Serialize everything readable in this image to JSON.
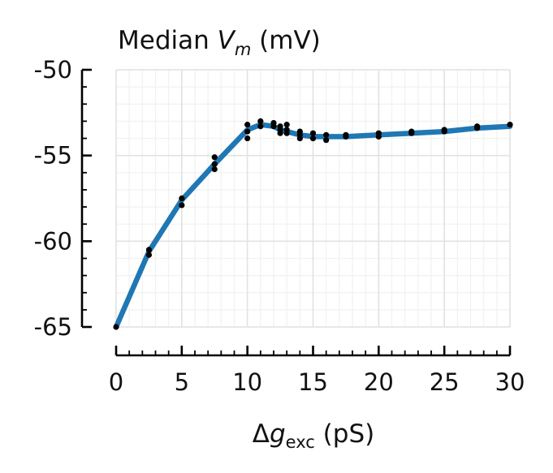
{
  "chart_data": {
    "type": "line",
    "title": {
      "prefix": "Median ",
      "var": "V",
      "sub": "m",
      "suffix": " (mV)"
    },
    "xlabel": {
      "prefix": "Δ",
      "var": "g",
      "sub": "exc",
      "suffix": " (pS)"
    },
    "ylabel": "",
    "xlim": [
      0,
      30
    ],
    "ylim": [
      -65,
      -50
    ],
    "x_ticks": [
      0,
      5,
      10,
      15,
      20,
      25,
      30
    ],
    "x_tick_labels": [
      "0",
      "5",
      "10",
      "15",
      "20",
      "25",
      "30"
    ],
    "y_ticks": [
      -65,
      -60,
      -55,
      -50
    ],
    "y_tick_labels": [
      "-65",
      "-60",
      "-55",
      "-50"
    ],
    "x_minor_step": 1,
    "y_minor_step": 1,
    "grid": true,
    "line_color": "#1f77b4",
    "marker_color": "#000000",
    "series": [
      {
        "x": [
          0,
          2.5,
          5,
          7.5,
          10,
          11,
          12,
          12.5,
          13,
          14,
          15,
          16,
          17.5,
          20,
          22.5,
          25,
          27.5,
          30
        ],
        "y": [
          -65.0,
          -60.6,
          -57.6,
          -55.5,
          -53.5,
          -53.2,
          -53.3,
          -53.5,
          -53.6,
          -53.8,
          -53.9,
          -53.9,
          -53.9,
          -53.8,
          -53.7,
          -53.6,
          -53.4,
          -53.3
        ]
      }
    ],
    "markers": {
      "x": [
        0,
        2.5,
        2.5,
        5,
        5,
        7.5,
        7.5,
        7.5,
        10,
        10,
        10,
        11,
        11,
        12,
        12,
        12.5,
        12.5,
        12.5,
        13,
        13,
        13,
        14,
        14,
        14,
        15,
        15,
        16,
        16,
        17.5,
        17.5,
        20,
        20,
        22.5,
        22.5,
        25,
        25,
        27.5,
        27.5,
        30
      ],
      "y": [
        -65.0,
        -60.5,
        -60.8,
        -57.5,
        -57.9,
        -55.1,
        -55.5,
        -55.8,
        -53.2,
        -53.6,
        -54.0,
        -53.0,
        -53.3,
        -53.1,
        -53.3,
        -53.3,
        -53.5,
        -53.7,
        -53.2,
        -53.5,
        -53.7,
        -53.6,
        -53.8,
        -54.0,
        -53.7,
        -54.0,
        -53.8,
        -54.1,
        -53.8,
        -53.9,
        -53.7,
        -53.9,
        -53.6,
        -53.7,
        -53.5,
        -53.6,
        -53.3,
        -53.4,
        -53.2
      ]
    }
  }
}
